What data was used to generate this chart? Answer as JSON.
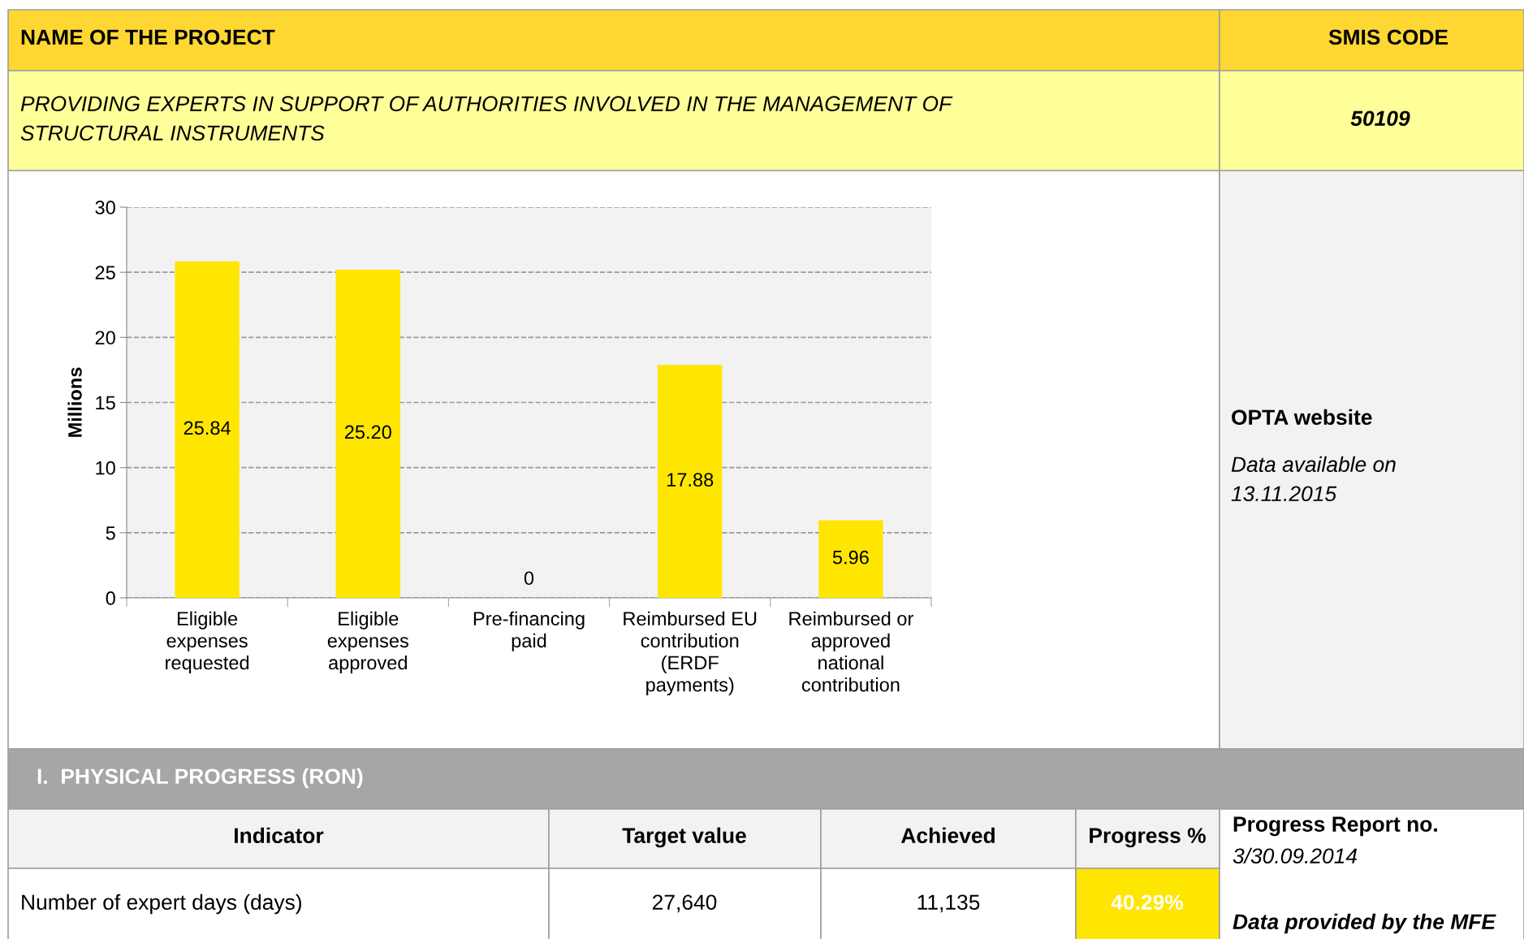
{
  "chart_data": {
    "type": "bar",
    "ylabel": "Millions",
    "categories": [
      "Eligible\nexpenses\nrequested",
      "Eligible\nexpenses\napproved",
      "Pre-financing\npaid",
      "Reimbursed EU\ncontribution\n(ERDF\npayments)",
      "Reimbursed or\napproved\nnational\ncontribution"
    ],
    "values": [
      25.84,
      25.2,
      0,
      17.88,
      5.96
    ],
    "value_labels": [
      "25.84",
      "25.20",
      "0",
      "17.88",
      "5.96"
    ],
    "color": "#ffe600",
    "ylim": [
      0,
      30
    ],
    "yticks": [
      0,
      5,
      10,
      15,
      20,
      25,
      30
    ],
    "grid": "y",
    "annotations": [
      "NAME OF THE PROJECT",
      "SMIS CODE",
      "PROVIDING EXPERTS IN SUPPORT OF AUTHORITIES INVOLVED IN THE MANAGEMENT OF\nSTRUCTURAL INSTRUMENTS",
      "50109",
      "OPTA website",
      "Data available on\n13.11.2015",
      "I.  PHYSICAL PROGRESS (RON)",
      "Indicator",
      "Target value",
      "Achieved",
      "Progress %",
      "Progress Report no.",
      "3/30.09.2014",
      "Data provided by the MFE",
      "Number of expert days (days)",
      "27,640",
      "11,135",
      "40.29%"
    ]
  }
}
